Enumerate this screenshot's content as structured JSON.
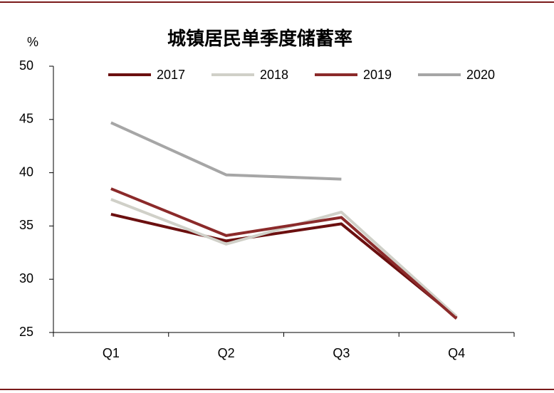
{
  "chart_data": {
    "type": "line",
    "title": "城镇居民单季度储蓄率",
    "y_label": "%",
    "categories": [
      "Q1",
      "Q2",
      "Q3",
      "Q4"
    ],
    "series": [
      {
        "name": "2017",
        "color": "#6b0f0f",
        "values": [
          36.1,
          33.6,
          35.2,
          26.4
        ]
      },
      {
        "name": "2018",
        "color": "#d0d0c8",
        "values": [
          37.5,
          33.3,
          36.3,
          26.5
        ]
      },
      {
        "name": "2019",
        "color": "#8b2a2a",
        "values": [
          38.5,
          34.1,
          35.8,
          26.3
        ]
      },
      {
        "name": "2020",
        "color": "#a6a6a6",
        "values": [
          44.7,
          39.8,
          39.4,
          null
        ]
      }
    ],
    "ylim": [
      25,
      50
    ],
    "yticks": [
      25,
      30,
      35,
      40,
      45,
      50
    ],
    "legend": "top"
  }
}
